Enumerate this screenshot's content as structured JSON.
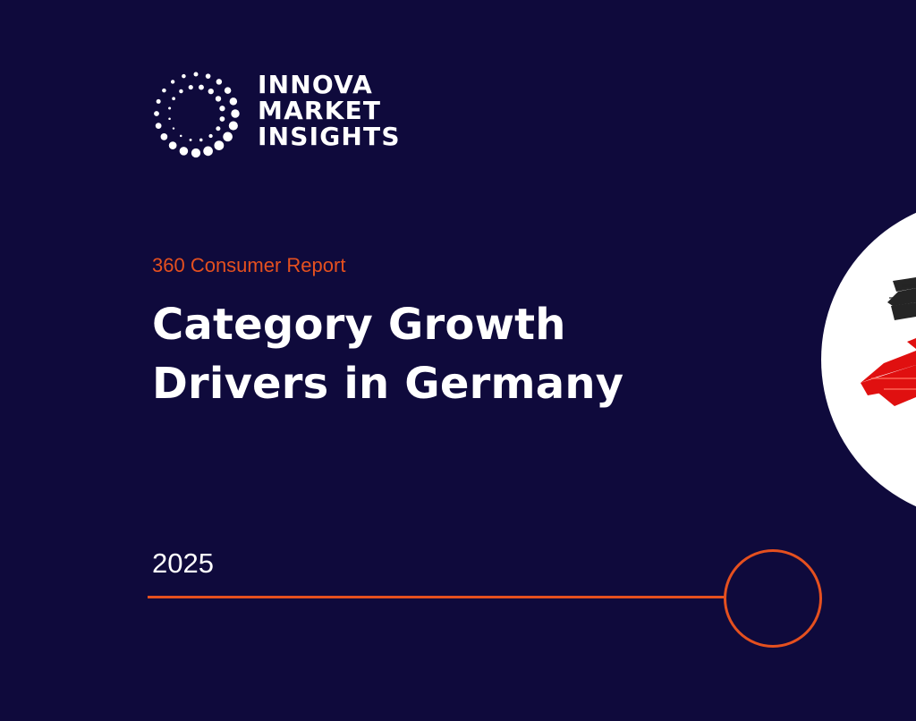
{
  "brand": {
    "name_lines": [
      "INNOVA",
      "MARKET",
      "INSIGHTS"
    ],
    "logo_icon": "dotted-ring-logo-icon"
  },
  "report": {
    "series": "360 Consumer Report",
    "title_lines": [
      "Category Growth",
      "Drivers in Germany"
    ],
    "year": "2025"
  },
  "decoration": {
    "flag_icon": "german-flag-brushstroke-icon"
  },
  "colors": {
    "background": "#0f0a3c",
    "accent": "#e5501f",
    "text": "#ffffff",
    "flag_black": "#1a1a1a",
    "flag_red": "#e01010"
  }
}
